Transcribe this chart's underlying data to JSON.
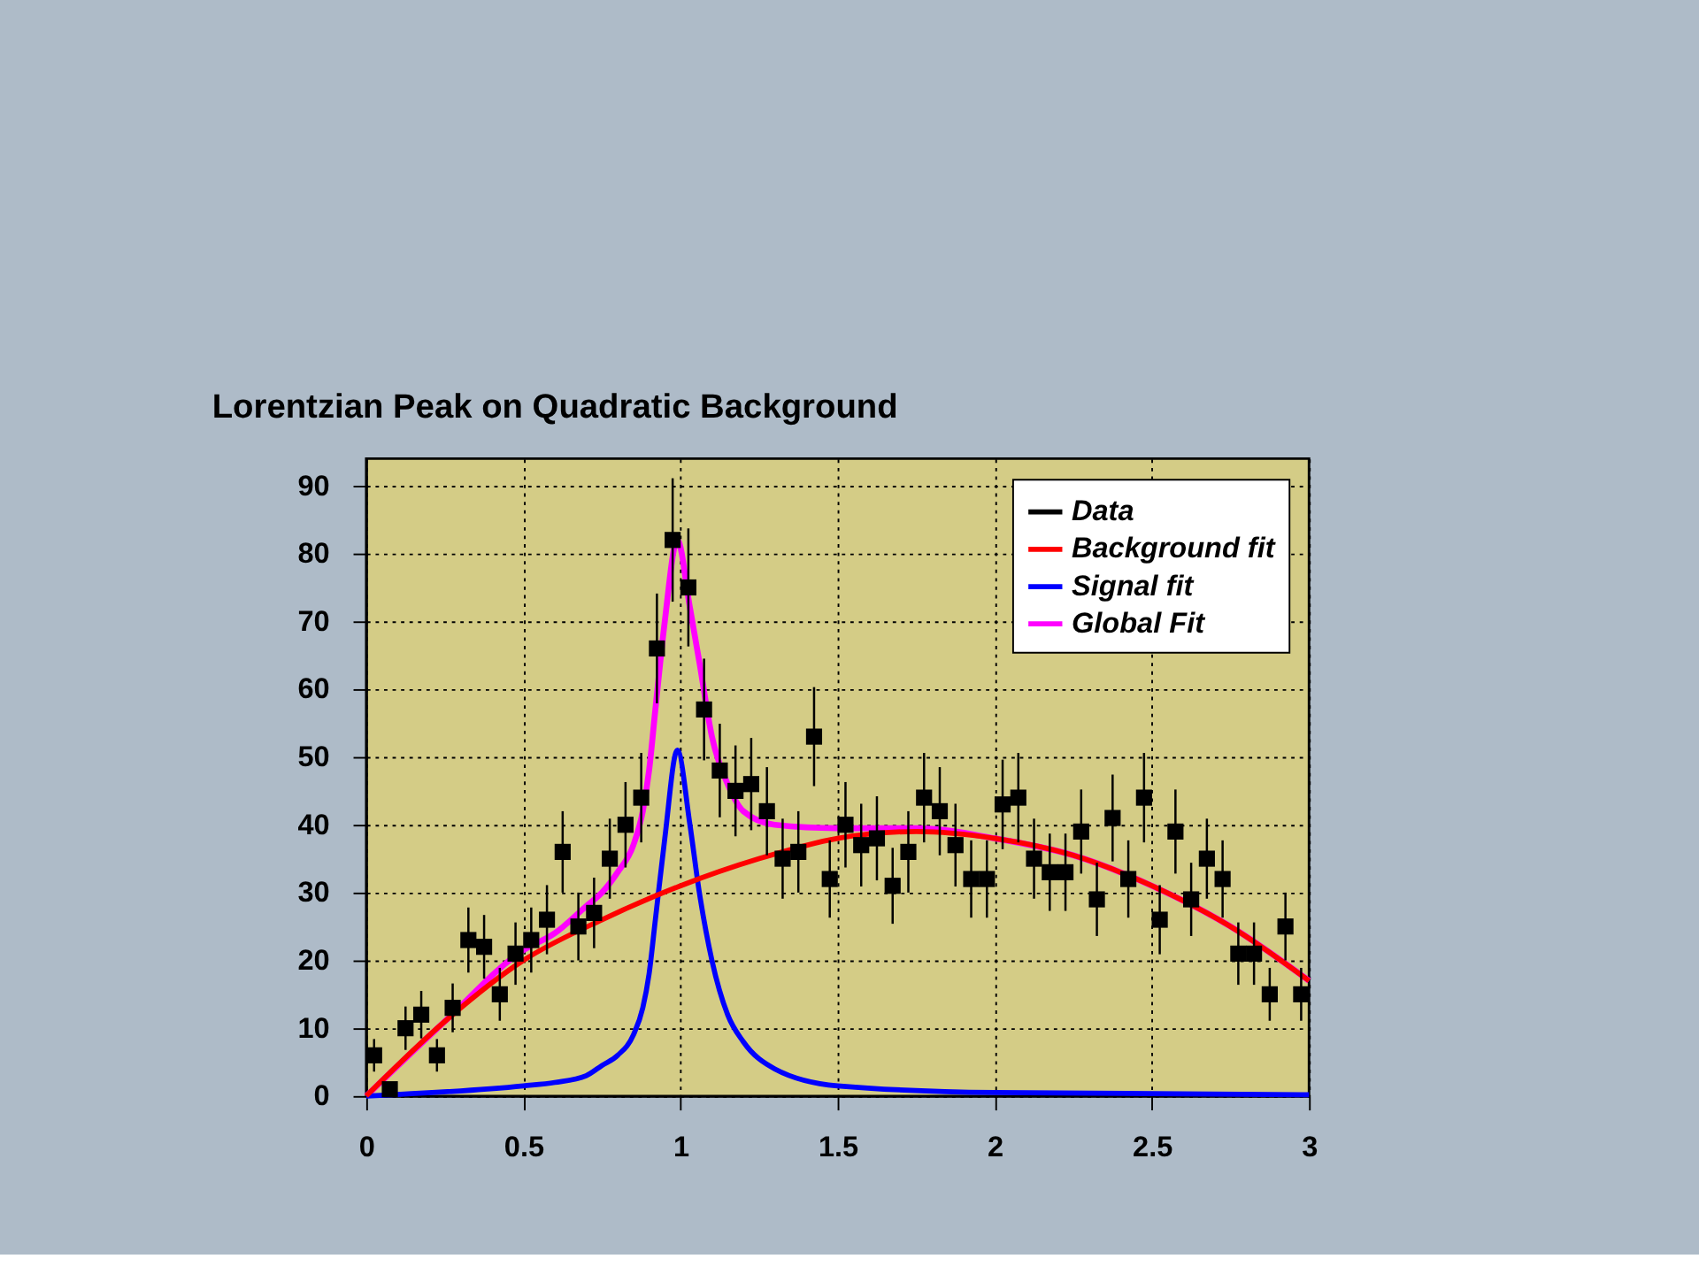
{
  "chart_data": {
    "type": "scatter",
    "title": "Lorentzian Peak on Quadratic Background",
    "xlim": [
      0,
      3
    ],
    "xticks": [
      0,
      0.5,
      1,
      1.5,
      2,
      2.5,
      3
    ],
    "ylim": [
      0,
      94
    ],
    "yticks": [
      0,
      10,
      20,
      30,
      40,
      50,
      60,
      70,
      80,
      90
    ],
    "grid": true,
    "legend": "top right",
    "series": [
      {
        "name": "Data",
        "marker": "square",
        "color": "#000000",
        "x": [
          0.025,
          0.075,
          0.125,
          0.175,
          0.225,
          0.275,
          0.325,
          0.375,
          0.425,
          0.475,
          0.525,
          0.575,
          0.625,
          0.675,
          0.725,
          0.775,
          0.825,
          0.875,
          0.925,
          0.975,
          1.025,
          1.075,
          1.125,
          1.175,
          1.225,
          1.275,
          1.325,
          1.375,
          1.425,
          1.475,
          1.525,
          1.575,
          1.625,
          1.675,
          1.725,
          1.775,
          1.825,
          1.875,
          1.925,
          1.975,
          2.025,
          2.075,
          2.125,
          2.175,
          2.225,
          2.275,
          2.325,
          2.375,
          2.425,
          2.475,
          2.525,
          2.575,
          2.625,
          2.675,
          2.725,
          2.775,
          2.825,
          2.875,
          2.925,
          2.975
        ],
        "values": [
          6,
          1,
          10,
          12,
          6,
          13,
          23,
          22,
          15,
          21,
          23,
          26,
          36,
          25,
          27,
          35,
          40,
          44,
          66,
          82,
          75,
          57,
          48,
          45,
          46,
          42,
          35,
          36,
          53,
          32,
          40,
          37,
          38,
          31,
          36,
          44,
          42,
          37,
          32,
          32,
          43,
          44,
          35,
          33,
          33,
          39,
          29,
          41,
          32,
          44,
          26,
          39,
          29,
          35,
          32,
          21,
          21,
          15,
          25,
          15
        ],
        "errors": [
          2.4,
          1,
          3.2,
          3.5,
          2.4,
          3.6,
          4.8,
          4.7,
          3.9,
          4.6,
          4.8,
          5.1,
          6,
          5,
          5.2,
          5.9,
          6.3,
          6.6,
          8.1,
          9.1,
          8.7,
          7.5,
          6.9,
          6.7,
          6.8,
          6.5,
          5.9,
          6,
          7.3,
          5.7,
          6.3,
          6.1,
          6.2,
          5.6,
          6,
          6.6,
          6.5,
          6.1,
          5.7,
          5.7,
          6.6,
          6.6,
          5.9,
          5.7,
          5.7,
          6.2,
          5.4,
          6.4,
          5.7,
          6.6,
          5.1,
          6.2,
          5.4,
          5.9,
          5.7,
          4.6,
          4.6,
          3.9,
          5,
          3.9
        ]
      },
      {
        "name": "Background fit",
        "type": "line",
        "marker": "none",
        "line_style": "solid",
        "color": "#ff0000",
        "x": [
          0,
          0.25,
          0.5,
          0.75,
          1,
          1.25,
          1.5,
          1.75,
          2,
          2.25,
          2.5,
          2.75,
          3
        ],
        "values": [
          0,
          11,
          20,
          26,
          31,
          35,
          38,
          39,
          38,
          35.5,
          31,
          25,
          17
        ]
      },
      {
        "name": "Signal fit",
        "type": "line",
        "marker": "none",
        "line_style": "solid",
        "color": "#0000ff",
        "x": [
          0,
          0.5,
          0.6,
          0.7,
          0.75,
          0.8,
          0.85,
          0.88,
          0.9,
          0.92,
          0.95,
          0.99,
          1.03,
          1.06,
          1.1,
          1.15,
          1.2,
          1.3,
          1.5,
          2,
          3
        ],
        "values": [
          0,
          1.5,
          2,
          3,
          4.5,
          6,
          9,
          13,
          18,
          26,
          38,
          51,
          40,
          30,
          20,
          12,
          8,
          4,
          1.5,
          0.5,
          0.2
        ]
      },
      {
        "name": "Global Fit",
        "type": "line",
        "marker": "none",
        "line_style": "solid",
        "color": "#ff00ff",
        "x": [
          0,
          0.25,
          0.5,
          0.6,
          0.7,
          0.75,
          0.8,
          0.85,
          0.88,
          0.9,
          0.92,
          0.95,
          0.99,
          1.03,
          1.06,
          1.1,
          1.15,
          1.2,
          1.3,
          1.5,
          1.75,
          2,
          2.25,
          2.5,
          2.75,
          3
        ],
        "values": [
          0,
          11,
          21.5,
          24,
          28,
          30,
          33,
          37,
          42,
          48,
          57,
          70,
          82,
          72,
          64,
          53,
          46,
          42,
          40,
          39.5,
          39.5,
          38,
          35.5,
          31,
          25,
          17
        ]
      }
    ]
  }
}
